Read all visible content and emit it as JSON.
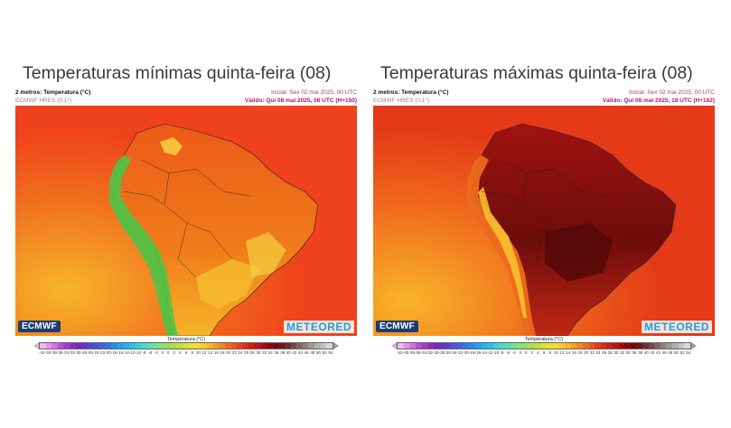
{
  "panels": [
    {
      "id": "min",
      "title": "Temperaturas mínimas quinta-feira (08)",
      "variable": "2 metros: Temperatura (°C)",
      "model": "ECMWF HRES (0.1°)",
      "init": "Inicial: Sex 02 mai 2025, 00 UTC",
      "valid": "Válido: Qui 08 mai 2025, 06 UTC (H+150)",
      "logo_left": "ECMWF",
      "logo_right": "METEORED",
      "legend_title": "Temperatura (°C)",
      "ocean_color": "#f0421c",
      "land_color": "#ee6a18",
      "andes_color": "#4cc447"
    },
    {
      "id": "max",
      "title": "Temperaturas máximas quinta-feira (08)",
      "variable": "2 metros: Temperatura (°C)",
      "model": "ECMWF HRES (0.1°)",
      "init": "Inicial: Sex 02 mai 2025, 00 UTC",
      "valid": "Válido: Qui 08 mai 2025, 18 UTC (H+162)",
      "logo_left": "ECMWF",
      "logo_right": "METEORED",
      "legend_title": "Temperatura (°C)",
      "ocean_color": "#e83818",
      "land_color": "#8a1010",
      "andes_color": "#e86018"
    }
  ],
  "legend": {
    "ticks": [
      "-42",
      "-40",
      "-38",
      "-36",
      "-34",
      "-32",
      "-30",
      "-28",
      "-26",
      "-24",
      "-22",
      "-20",
      "-18",
      "-16",
      "-14",
      "-12",
      "-10",
      "-8",
      "-6",
      "-4",
      "-2",
      "0",
      "2",
      "4",
      "6",
      "8",
      "10",
      "12",
      "14",
      "16",
      "18",
      "20",
      "22",
      "24",
      "26",
      "28",
      "30",
      "32",
      "34",
      "36",
      "38",
      "40",
      "42",
      "44",
      "46",
      "48",
      "50",
      "52",
      "54"
    ],
    "colors": [
      "#f4b8f0",
      "#e890ea",
      "#d66ee0",
      "#bf4fd4",
      "#a63ac8",
      "#8f2cc0",
      "#7a26bc",
      "#6a30c8",
      "#5a40d4",
      "#4a52dc",
      "#3c64e2",
      "#3078e8",
      "#288ceb",
      "#22a0ee",
      "#20b4ee",
      "#22c6e8",
      "#30d2dc",
      "#46dcc8",
      "#5ee0b0",
      "#72e492",
      "#84e474",
      "#9ae05a",
      "#b0e048",
      "#c6e03a",
      "#dce030",
      "#ece42c",
      "#f6dc2a",
      "#fccc28",
      "#fcb426",
      "#fa9c22",
      "#f6841e",
      "#f26c1a",
      "#ee5418",
      "#e83c16",
      "#de2a14",
      "#cc1c12",
      "#b81410",
      "#a20e0e",
      "#8c0a0c",
      "#76080a",
      "#6a1818",
      "#6e3030",
      "#7a4848",
      "#866262",
      "#947c7c",
      "#a29696",
      "#b2b0b0",
      "#c4c4c4",
      "#d8d8d8"
    ]
  }
}
